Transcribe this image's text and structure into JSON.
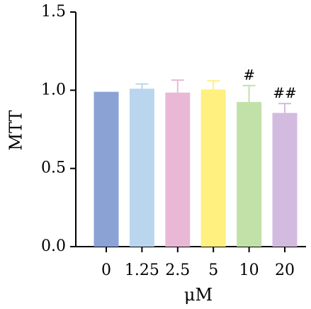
{
  "chart_data": {
    "type": "bar",
    "title": "",
    "xlabel": "μM",
    "ylabel": "MTT",
    "categories": [
      "0",
      "1.25",
      "2.5",
      "5",
      "10",
      "20"
    ],
    "values": [
      0.99,
      1.01,
      0.985,
      1.005,
      0.925,
      0.855
    ],
    "error": [
      0.0,
      0.03,
      0.08,
      0.055,
      0.105,
      0.06
    ],
    "annotations": [
      "",
      "",
      "",
      "",
      "#",
      "##"
    ],
    "colors": [
      "#8ba2d5",
      "#b9d6ee",
      "#eab8d7",
      "#fff07f",
      "#c1e1a9",
      "#d3bbe0"
    ],
    "ylim": [
      0,
      1.5
    ],
    "yticks": [
      "0.0",
      "0.5",
      "1.0",
      "1.5"
    ],
    "grid": false,
    "legend": "none"
  }
}
